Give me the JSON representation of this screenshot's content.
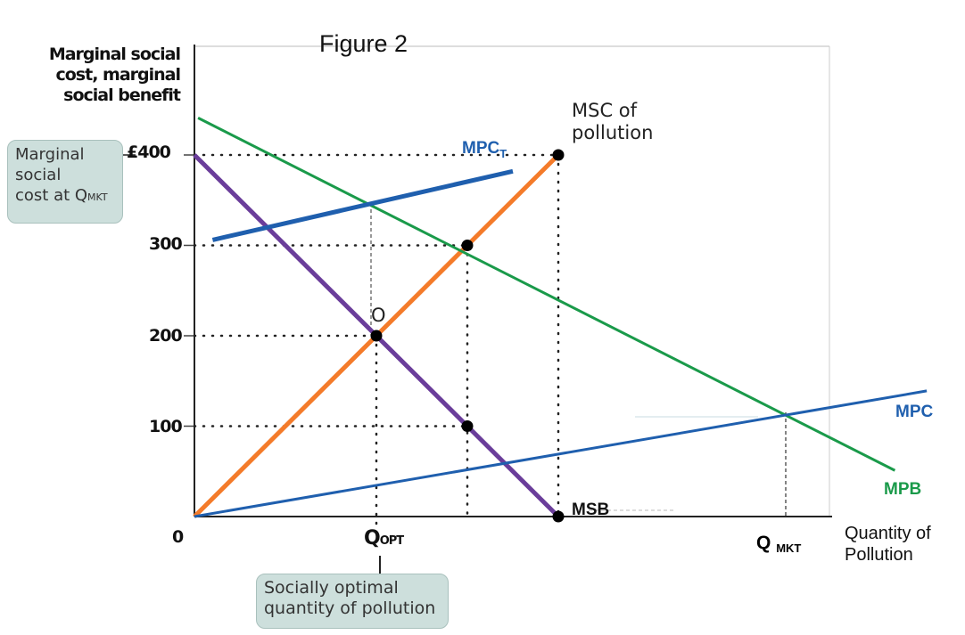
{
  "title": "Figure 2",
  "y_axis_label": "Marginal social cost, marginal social benefit",
  "x_axis_label": "Quantity of Pollution",
  "origin_label": "0",
  "y_ticks": [
    {
      "value": 400,
      "label": "£400"
    },
    {
      "value": 300,
      "label": "300"
    },
    {
      "value": 200,
      "label": "200"
    },
    {
      "value": 100,
      "label": "100"
    }
  ],
  "x_ticks": {
    "q_opt": "Q",
    "q_opt_sub": "OPT",
    "q_mkt": "Q",
    "q_mkt_sub": "MKT"
  },
  "callouts": {
    "msc_at_qmkt": {
      "line1": "Marginal",
      "line2": "social",
      "line3": "cost at Q",
      "sub": "MKT"
    },
    "optimal": {
      "line1": "Socially optimal",
      "line2": "quantity of pollution"
    }
  },
  "point_labels": {
    "optimum": "O",
    "msc_of_pollution": "MSC of pollution"
  },
  "colors": {
    "msc": "#f47b2a",
    "msb": "#6a3d9a",
    "mpb": "#1a9a4a",
    "mpc": "#1f5fae",
    "callout_bg": "#cddfdc"
  },
  "chart_data": {
    "type": "line",
    "note_x_units": "relative quantity (unlabelled axis)",
    "series": [
      {
        "name": "MSC of pollution",
        "color_key": "msc",
        "points": [
          [
            0,
            0
          ],
          [
            4,
            400
          ]
        ]
      },
      {
        "name": "MSB",
        "color_key": "msb",
        "points": [
          [
            0,
            400
          ],
          [
            4,
            0
          ]
        ]
      },
      {
        "name": "MPB",
        "color_key": "mpb",
        "points": [
          [
            0.04,
            441
          ],
          [
            7.7,
            51
          ]
        ]
      },
      {
        "name": "MPC",
        "color_key": "mpc",
        "points": [
          [
            0,
            0
          ],
          [
            8.05,
            139
          ]
        ]
      },
      {
        "name": "MPC",
        "name_sub": "T",
        "color_key": "mpc",
        "points": [
          [
            0.2,
            306
          ],
          [
            3.5,
            382
          ]
        ]
      }
    ],
    "marked_points": [
      [
        2,
        200
      ],
      [
        3,
        300
      ],
      [
        3,
        100
      ],
      [
        4,
        400
      ],
      [
        4,
        0
      ]
    ],
    "guides_dotted": [
      [
        0,
        400,
        4,
        400
      ],
      [
        0,
        300,
        3,
        300
      ],
      [
        0,
        200,
        2,
        200
      ],
      [
        0,
        100,
        3,
        100
      ],
      [
        2,
        200,
        2,
        -30
      ],
      [
        3,
        300,
        3,
        0
      ],
      [
        4,
        400,
        4,
        0
      ]
    ],
    "q_opt": 2,
    "q_mkt": 6.5,
    "ylim": [
      0,
      400
    ]
  }
}
